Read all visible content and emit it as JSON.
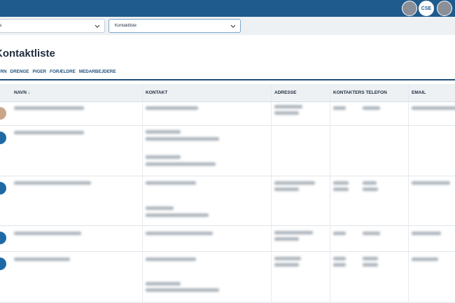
{
  "header": {
    "avatar": "CSE"
  },
  "filters": [
    "e",
    "Kontaktliste"
  ],
  "heading": "Kontaktliste",
  "tabs": [
    "BØRN",
    "DRENGE",
    "PIGER",
    "FORÆLDRE",
    "MEDARBEJDERE"
  ],
  "table": {
    "columns": [
      "NAVN ↓",
      "KONTAKT",
      "ADRESSE",
      "KONTAKTERS TELEFON",
      "EMAIL"
    ]
  }
}
